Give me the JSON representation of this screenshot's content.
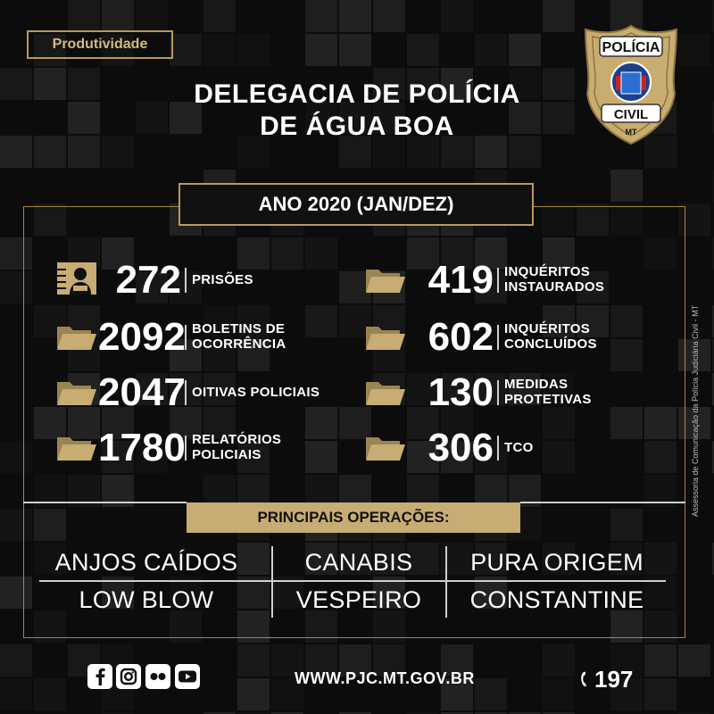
{
  "tag": "Produtividade",
  "title_line1": "DELEGACIA DE POLÍCIA",
  "title_line2": "DE ÁGUA BOA",
  "badge": {
    "top": "POLÍCIA",
    "middle": "CIVIL",
    "bottom": "MT"
  },
  "period": "ANO 2020 (JAN/DEZ)",
  "stats_left": [
    {
      "value": "272",
      "label1": "PRISÕES",
      "label2": "",
      "icon": "prisoner-icon"
    },
    {
      "value": "2092",
      "label1": "BOLETINS DE",
      "label2": "OCORRÊNCIA",
      "icon": "folder-icon"
    },
    {
      "value": "2047",
      "label1": "OITIVAS POLICIAIS",
      "label2": "",
      "icon": "folder-icon"
    },
    {
      "value": "1780",
      "label1": "RELATÓRIOS",
      "label2": "POLICIAIS",
      "icon": "folder-icon"
    }
  ],
  "stats_right": [
    {
      "value": "419",
      "label1": "INQUÉRITOS",
      "label2": "INSTAURADOS",
      "icon": "folder-icon"
    },
    {
      "value": "602",
      "label1": "INQUÉRITOS",
      "label2": "CONCLUÍDOS",
      "icon": "folder-icon"
    },
    {
      "value": "130",
      "label1": "MEDIDAS",
      "label2": "PROTETIVAS",
      "icon": "folder-icon"
    },
    {
      "value": "306",
      "label1": "TCO",
      "label2": "",
      "icon": "folder-icon"
    }
  ],
  "operations_title": "PRINCIPAIS OPERAÇÕES:",
  "operations": [
    [
      "ANJOS CAÍDOS",
      "CANABIS",
      "PURA ORIGEM"
    ],
    [
      "LOW BLOW",
      "VESPEIRO",
      "CONSTANTINE"
    ]
  ],
  "credit": "Assessoria de Comunicação da Polícia Judiciária Civil - MT",
  "social_icons": [
    "facebook-icon",
    "instagram-icon",
    "flickr-icon",
    "youtube-icon"
  ],
  "website": "WWW.PJC.MT.GOV.BR",
  "phone": "197",
  "colors": {
    "gold": "#c7ac73",
    "gold_border": "#b79a5c",
    "background": "#0c0c0c"
  }
}
